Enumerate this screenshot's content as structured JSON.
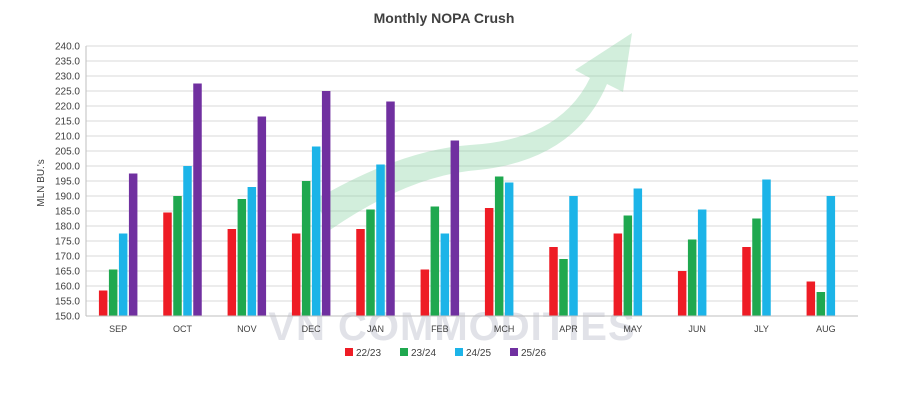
{
  "chart_data": {
    "type": "bar",
    "title": "Monthly NOPA Crush",
    "xlabel": "",
    "ylabel": "MLN BU.'s",
    "ylim": [
      150,
      240
    ],
    "ytick_step": 5,
    "grid": true,
    "legend_position": "bottom",
    "categories": [
      "SEP",
      "OCT",
      "NOV",
      "DEC",
      "JAN",
      "FEB",
      "MCH",
      "APR",
      "MAY",
      "JUN",
      "JLY",
      "AUG"
    ],
    "series": [
      {
        "name": "22/23",
        "color": "#ee1c25",
        "values": [
          158.5,
          184.5,
          179.0,
          177.5,
          179.0,
          165.5,
          186.0,
          173.0,
          177.5,
          165.0,
          173.0,
          161.5
        ]
      },
      {
        "name": "23/24",
        "color": "#1fa84f",
        "values": [
          165.5,
          190.0,
          189.0,
          195.0,
          185.5,
          186.5,
          196.5,
          169.0,
          183.5,
          175.5,
          182.5,
          158.0
        ]
      },
      {
        "name": "24/25",
        "color": "#1cb4e8",
        "values": [
          177.5,
          200.0,
          193.0,
          206.5,
          200.5,
          177.5,
          194.5,
          190.0,
          192.5,
          185.5,
          195.5,
          190.0
        ]
      },
      {
        "name": "25/26",
        "color": "#7030a0",
        "values": [
          197.5,
          227.5,
          216.5,
          225.0,
          221.5,
          208.5,
          null,
          null,
          null,
          null,
          null,
          null
        ]
      }
    ]
  },
  "watermark": {
    "text": "VN COMMODITIES",
    "arrow_color": "#7fcf9a"
  }
}
